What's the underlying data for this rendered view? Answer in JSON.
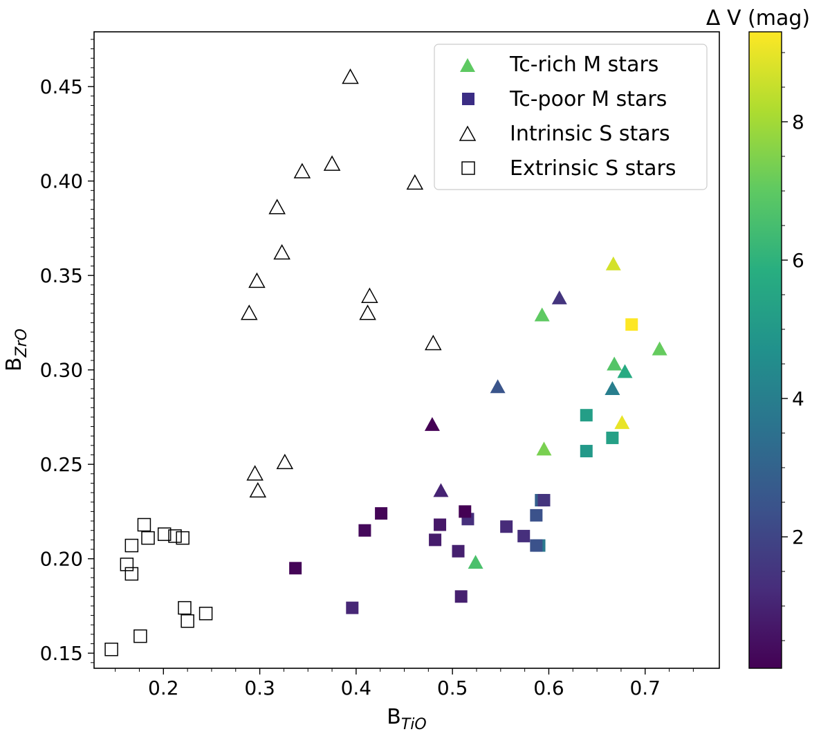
{
  "chart_data": {
    "type": "scatter",
    "xlabel": "B",
    "xlabel_sub": "TiO",
    "ylabel": "B",
    "ylabel_sub": "ZrO",
    "xlim": [
      0.128,
      0.777
    ],
    "ylim": [
      0.142,
      0.479
    ],
    "x_ticks": [
      0.2,
      0.3,
      0.4,
      0.5,
      0.6,
      0.7
    ],
    "x_tick_labels": [
      "0.2",
      "0.3",
      "0.4",
      "0.5",
      "0.6",
      "0.7"
    ],
    "y_ticks": [
      0.15,
      0.2,
      0.25,
      0.3,
      0.35,
      0.4,
      0.45
    ],
    "y_tick_labels": [
      "0.15",
      "0.20",
      "0.25",
      "0.30",
      "0.35",
      "0.40",
      "0.45"
    ],
    "grid": false,
    "legend_position": "top-right",
    "legend": [
      {
        "label": "Tc-rich M stars",
        "marker": "triangle",
        "filled": true,
        "color": "#5ec962"
      },
      {
        "label": "Tc-poor M stars",
        "marker": "square",
        "filled": true,
        "color": "#3b2d84"
      },
      {
        "label": "Intrinsic S stars",
        "marker": "triangle",
        "filled": false,
        "color": "#000000"
      },
      {
        "label": "Extrinsic S stars",
        "marker": "square",
        "filled": false,
        "color": "#000000"
      }
    ],
    "colorbar": {
      "title": "Δ V (mag)",
      "colormap": "viridis",
      "range": [
        0.1,
        9.3
      ],
      "ticks": [
        2,
        4,
        6,
        8
      ],
      "tick_labels": [
        "2",
        "4",
        "6",
        "8"
      ]
    },
    "series": [
      {
        "name": "Tc-rich M stars",
        "marker": "triangle",
        "filled": true,
        "points": [
          {
            "x": 0.593,
            "y": 0.329,
            "dv": 7.0
          },
          {
            "x": 0.611,
            "y": 0.338,
            "dv": 1.5
          },
          {
            "x": 0.667,
            "y": 0.356,
            "dv": 8.7
          },
          {
            "x": 0.715,
            "y": 0.311,
            "dv": 7.1
          },
          {
            "x": 0.668,
            "y": 0.303,
            "dv": 6.8
          },
          {
            "x": 0.679,
            "y": 0.299,
            "dv": 5.7
          },
          {
            "x": 0.666,
            "y": 0.29,
            "dv": 4.0
          },
          {
            "x": 0.547,
            "y": 0.291,
            "dv": 2.5
          },
          {
            "x": 0.676,
            "y": 0.272,
            "dv": 9.0
          },
          {
            "x": 0.479,
            "y": 0.271,
            "dv": 0.1
          },
          {
            "x": 0.595,
            "y": 0.258,
            "dv": 7.4
          },
          {
            "x": 0.488,
            "y": 0.236,
            "dv": 1.0
          },
          {
            "x": 0.524,
            "y": 0.198,
            "dv": 6.6
          }
        ]
      },
      {
        "name": "Tc-poor M stars",
        "marker": "square",
        "filled": true,
        "points": [
          {
            "x": 0.686,
            "y": 0.324,
            "dv": 9.3
          },
          {
            "x": 0.639,
            "y": 0.276,
            "dv": 5.2
          },
          {
            "x": 0.666,
            "y": 0.264,
            "dv": 5.3
          },
          {
            "x": 0.639,
            "y": 0.257,
            "dv": 5.0
          },
          {
            "x": 0.592,
            "y": 0.231,
            "dv": 2.9
          },
          {
            "x": 0.595,
            "y": 0.231,
            "dv": 1.5
          },
          {
            "x": 0.587,
            "y": 0.223,
            "dv": 2.4
          },
          {
            "x": 0.59,
            "y": 0.207,
            "dv": 3.8
          },
          {
            "x": 0.587,
            "y": 0.207,
            "dv": 2.4
          },
          {
            "x": 0.574,
            "y": 0.212,
            "dv": 1.3
          },
          {
            "x": 0.556,
            "y": 0.217,
            "dv": 1.2
          },
          {
            "x": 0.516,
            "y": 0.221,
            "dv": 1.3
          },
          {
            "x": 0.513,
            "y": 0.225,
            "dv": 0.1
          },
          {
            "x": 0.426,
            "y": 0.224,
            "dv": 0.2
          },
          {
            "x": 0.409,
            "y": 0.215,
            "dv": 0.3
          },
          {
            "x": 0.487,
            "y": 0.218,
            "dv": 0.7
          },
          {
            "x": 0.482,
            "y": 0.21,
            "dv": 0.8
          },
          {
            "x": 0.506,
            "y": 0.204,
            "dv": 0.9
          },
          {
            "x": 0.337,
            "y": 0.195,
            "dv": 0.2
          },
          {
            "x": 0.396,
            "y": 0.174,
            "dv": 1.1
          },
          {
            "x": 0.509,
            "y": 0.18,
            "dv": 0.9
          }
        ]
      },
      {
        "name": "Intrinsic S stars",
        "marker": "triangle",
        "filled": false,
        "points": [
          {
            "x": 0.394,
            "y": 0.455
          },
          {
            "x": 0.375,
            "y": 0.409
          },
          {
            "x": 0.344,
            "y": 0.405
          },
          {
            "x": 0.461,
            "y": 0.399
          },
          {
            "x": 0.318,
            "y": 0.386
          },
          {
            "x": 0.323,
            "y": 0.362
          },
          {
            "x": 0.297,
            "y": 0.347
          },
          {
            "x": 0.414,
            "y": 0.339
          },
          {
            "x": 0.289,
            "y": 0.33
          },
          {
            "x": 0.412,
            "y": 0.33
          },
          {
            "x": 0.48,
            "y": 0.314
          },
          {
            "x": 0.326,
            "y": 0.251
          },
          {
            "x": 0.295,
            "y": 0.245
          },
          {
            "x": 0.298,
            "y": 0.236
          }
        ]
      },
      {
        "name": "Extrinsic S stars",
        "marker": "square",
        "filled": false,
        "points": [
          {
            "x": 0.18,
            "y": 0.218
          },
          {
            "x": 0.201,
            "y": 0.213
          },
          {
            "x": 0.212,
            "y": 0.212
          },
          {
            "x": 0.184,
            "y": 0.211
          },
          {
            "x": 0.22,
            "y": 0.211
          },
          {
            "x": 0.167,
            "y": 0.207
          },
          {
            "x": 0.162,
            "y": 0.197
          },
          {
            "x": 0.167,
            "y": 0.192
          },
          {
            "x": 0.222,
            "y": 0.174
          },
          {
            "x": 0.244,
            "y": 0.171
          },
          {
            "x": 0.225,
            "y": 0.167
          },
          {
            "x": 0.176,
            "y": 0.159
          },
          {
            "x": 0.146,
            "y": 0.152
          }
        ]
      }
    ]
  }
}
